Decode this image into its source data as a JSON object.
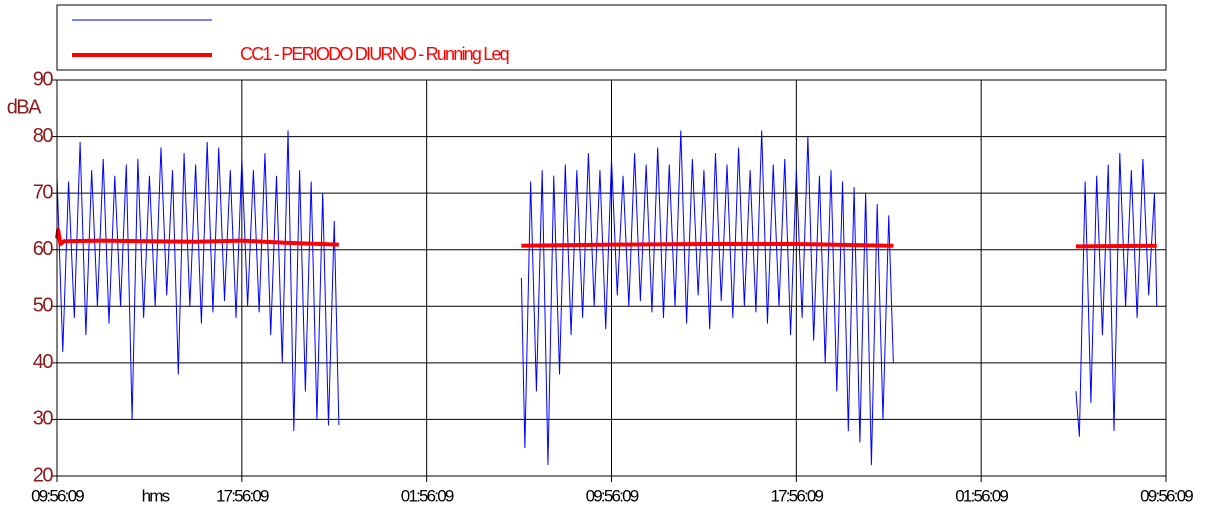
{
  "chart_data": {
    "type": "line",
    "y_label": "dBA",
    "x_label": "hms",
    "legend": "top",
    "grid": true,
    "tick_label_color": "#8b1a1a",
    "xlim": [
      0,
      48
    ],
    "ylim": [
      20,
      90
    ],
    "yticks": [
      20,
      30,
      40,
      50,
      60,
      70,
      80,
      90
    ],
    "xticks": [
      {
        "value": 0,
        "label": "09:56:09"
      },
      {
        "value": 8,
        "label": "17:56:09"
      },
      {
        "value": 16,
        "label": "01:56:09"
      },
      {
        "value": 24,
        "label": "09:56:09"
      },
      {
        "value": 32,
        "label": "17:56:09"
      },
      {
        "value": 40,
        "label": "01:56:09"
      },
      {
        "value": 48,
        "label": "09:56:09"
      }
    ],
    "series": [
      {
        "color": "#0000ff",
        "width": 1,
        "x": [
          0,
          0.25,
          0.5,
          0.75,
          1,
          1.25,
          1.5,
          1.75,
          2,
          2.25,
          2.5,
          2.75,
          3,
          3.25,
          3.5,
          3.75,
          4,
          4.25,
          4.5,
          4.75,
          5,
          5.25,
          5.5,
          5.75,
          6,
          6.25,
          6.5,
          6.75,
          7,
          7.25,
          7.5,
          7.75,
          8,
          8.25,
          8.5,
          8.75,
          9,
          9.25,
          9.5,
          9.75,
          10,
          10.25,
          10.5,
          10.75,
          11,
          11.25,
          11.5,
          11.75,
          12,
          12.2,
          16,
          20.1,
          20.25,
          20.5,
          20.75,
          21,
          21.25,
          21.5,
          21.75,
          22,
          22.25,
          22.5,
          22.75,
          23,
          23.25,
          23.5,
          23.75,
          24,
          24.25,
          24.5,
          24.75,
          25,
          25.25,
          25.5,
          25.75,
          26,
          26.25,
          26.5,
          26.75,
          27,
          27.25,
          27.5,
          27.75,
          28,
          28.25,
          28.5,
          28.75,
          29,
          29.25,
          29.5,
          29.75,
          30,
          30.25,
          30.5,
          30.75,
          31,
          31.25,
          31.5,
          31.75,
          32,
          32.25,
          32.5,
          32.75,
          33,
          33.25,
          33.5,
          33.75,
          34,
          34.25,
          34.5,
          34.75,
          35,
          35.25,
          35.5,
          35.75,
          36,
          36.2,
          40,
          44.1,
          44.25,
          44.5,
          44.75,
          45,
          45.25,
          45.5,
          45.75,
          46,
          46.25,
          46.5,
          46.75,
          47,
          47.25,
          47.5,
          47.6
        ],
        "values": [
          73,
          42,
          72,
          48,
          79,
          45,
          74,
          50,
          76,
          47,
          73,
          50,
          75,
          30,
          76,
          48,
          73,
          50,
          78,
          52,
          74,
          38,
          77,
          50,
          75,
          47,
          79,
          49,
          78,
          51,
          74,
          48,
          76,
          50,
          74,
          49,
          77,
          45,
          73,
          40,
          81,
          28,
          74,
          35,
          72,
          30,
          70,
          29,
          65,
          29,
          null,
          55,
          25,
          72,
          35,
          74,
          22,
          73,
          38,
          75,
          45,
          74,
          48,
          77,
          50,
          74,
          46,
          76,
          52,
          73,
          50,
          77,
          51,
          75,
          49,
          78,
          48,
          75,
          50,
          81,
          47,
          76,
          52,
          74,
          46,
          77,
          51,
          75,
          48,
          78,
          50,
          74,
          49,
          81,
          47,
          75,
          50,
          76,
          45,
          74,
          48,
          80,
          44,
          73,
          40,
          74,
          35,
          72,
          28,
          71,
          26,
          70,
          22,
          68,
          30,
          66,
          40,
          null,
          35,
          27,
          72,
          33,
          73,
          45,
          75,
          28,
          77,
          50,
          74,
          48,
          76,
          52,
          70,
          50
        ]
      },
      {
        "name": "CC1 - PERIODO DIURNO - Running Leq",
        "color": "#ff0000",
        "width": 4,
        "x": [
          0,
          0.05,
          0.15,
          0.3,
          2,
          4,
          6,
          8,
          10,
          12.2,
          16,
          20.1,
          24,
          28,
          32,
          36.2,
          40,
          44.1,
          47.6
        ],
        "values": [
          62,
          63.5,
          61,
          61.5,
          61.6,
          61.5,
          61.4,
          61.6,
          61.2,
          60.9,
          null,
          60.7,
          60.9,
          61,
          61,
          60.7,
          null,
          60.6,
          60.7
        ]
      }
    ]
  }
}
